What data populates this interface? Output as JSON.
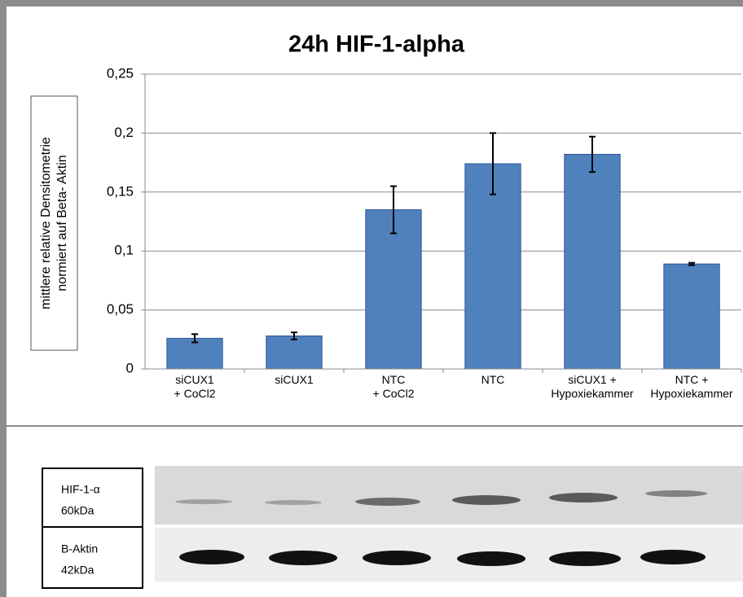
{
  "chart_data": {
    "type": "bar",
    "title": "24h HIF-1-alpha",
    "y_label": "mittlere relative Densitometrie\nnormiert auf Beta- Aktin",
    "categories": [
      "siCUX1\n+ CoCl2",
      "siCUX1",
      "NTC\n+ CoCl2",
      "NTC",
      "siCUX1 +\nHypoxiekammer",
      "NTC  +\nHypoxiekammer"
    ],
    "values": [
      0.026,
      0.028,
      0.135,
      0.174,
      0.182,
      0.089
    ],
    "errors": [
      0.0035,
      0.003,
      0.02,
      0.026,
      0.015,
      0.001
    ],
    "color": "#4f81bd",
    "ylim": [
      0,
      0.25
    ],
    "yticks": [
      0,
      {
        "value": 0.05,
        "label": "0,05"
      },
      {
        "value": 0.1,
        "label": "0,1"
      },
      {
        "value": 0.15,
        "label": "0,15"
      },
      {
        "value": 0.2,
        "label": "0,2"
      },
      {
        "value": 0.25,
        "label": "0,25"
      }
    ],
    "grid": true
  },
  "blot": {
    "rows": [
      {
        "label": "HIF-1-α",
        "size": "60kDa"
      },
      {
        "label": "B-Aktin",
        "size": "42kDa"
      }
    ]
  }
}
